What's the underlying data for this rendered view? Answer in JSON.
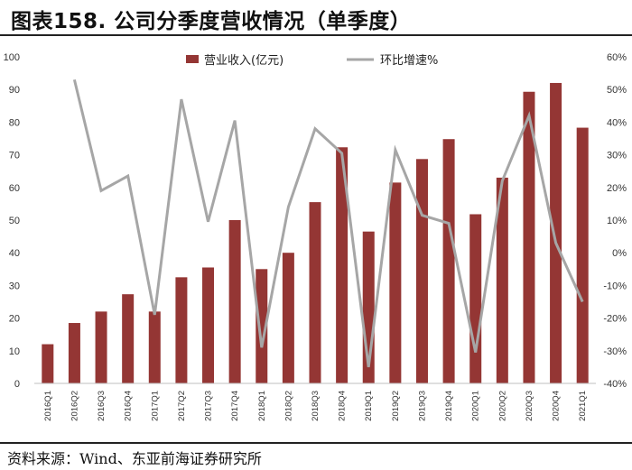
{
  "header": {
    "title": "图表158. 公司分季度营收情况（单季度）"
  },
  "footer": {
    "source": "资料来源：Wind、东亚前海证券研究所"
  },
  "chart_data": {
    "type": "bar",
    "categories": [
      "2016Q1",
      "2016Q2",
      "2016Q3",
      "2016Q4",
      "2017Q1",
      "2017Q2",
      "2017Q3",
      "2017Q4",
      "2018Q1",
      "2018Q2",
      "2018Q3",
      "2018Q4",
      "2019Q1",
      "2019Q2",
      "2019Q3",
      "2019Q4",
      "2020Q1",
      "2020Q2",
      "2020Q3",
      "2020Q4",
      "2021Q1"
    ],
    "series": [
      {
        "name": "营业收入(亿元)",
        "type": "bar",
        "axis": "left",
        "color": "#943634",
        "values": [
          12,
          18.5,
          22,
          27.3,
          22,
          32.5,
          35.5,
          50,
          35,
          40,
          55.5,
          72.3,
          46.5,
          61.5,
          68.7,
          74.8,
          51.8,
          63,
          89.3,
          92,
          78.3
        ]
      },
      {
        "name": "环比增速%",
        "type": "line",
        "axis": "right",
        "color": "#a6a6a6",
        "values": [
          null,
          53,
          19,
          23.5,
          -19,
          47,
          9.5,
          40.5,
          -29,
          14,
          38,
          30.5,
          -35,
          31.5,
          11.5,
          9,
          -30.5,
          22,
          42,
          3,
          -15
        ]
      }
    ],
    "y_left": {
      "range": [
        0,
        100
      ],
      "ticks": [
        "0",
        "10",
        "20",
        "30",
        "40",
        "50",
        "60",
        "70",
        "80",
        "90",
        "100"
      ]
    },
    "y_right": {
      "range": [
        -40,
        60
      ],
      "ticks": [
        "-40%",
        "-30%",
        "-20%",
        "-10%",
        "0%",
        "10%",
        "20%",
        "30%",
        "40%",
        "50%",
        "60%"
      ]
    },
    "grid": false,
    "legend": "top-center"
  }
}
